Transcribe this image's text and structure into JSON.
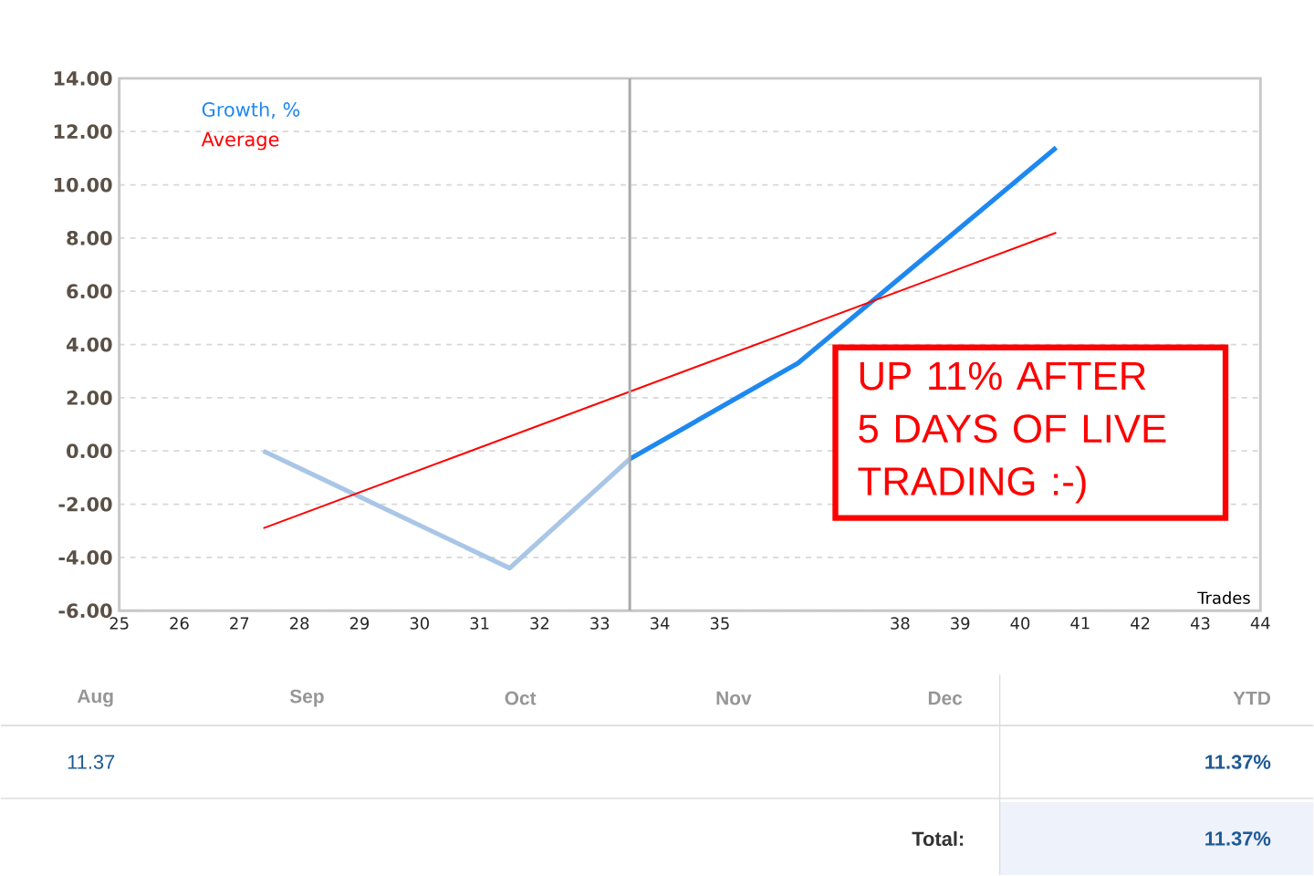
{
  "chart_data": {
    "type": "line",
    "xlabel": "Trades",
    "xlim": [
      25,
      44
    ],
    "xticks": [
      25,
      26,
      27,
      28,
      29,
      30,
      31,
      32,
      33,
      34,
      35,
      38,
      39,
      40,
      41,
      42,
      43,
      44
    ],
    "ylim": [
      -6,
      14
    ],
    "yticks": [
      {
        "value": -6,
        "label": "-6.00"
      },
      {
        "value": -4,
        "label": "-4.00"
      },
      {
        "value": -2,
        "label": "-2.00"
      },
      {
        "value": 0,
        "label": "0.00"
      },
      {
        "value": 2,
        "label": "2.00"
      },
      {
        "value": 4,
        "label": "4.00"
      },
      {
        "value": 6,
        "label": "6.00"
      },
      {
        "value": 8,
        "label": "8.00"
      },
      {
        "value": 10,
        "label": "10.00"
      },
      {
        "value": 12,
        "label": "12.00"
      },
      {
        "value": 14,
        "label": "14.00"
      }
    ],
    "series": [
      {
        "color": "#a9c6e6",
        "x": [
          27.4,
          31.5,
          33.5
        ],
        "values": [
          0,
          -4.4,
          -0.3
        ]
      },
      {
        "name": "Growth, %",
        "color": "#1e88f0",
        "x": [
          33.5,
          36.3,
          40.6
        ],
        "values": [
          -0.3,
          3.3,
          11.4
        ]
      },
      {
        "name": "Average",
        "color": "#ff0000",
        "x": [
          27.4,
          40.6
        ],
        "values": [
          -2.9,
          8.2
        ]
      }
    ],
    "ref_lines": [
      {
        "axis": "x",
        "value": 33.5,
        "color": "#aaaaaa"
      }
    ],
    "grid": "y",
    "legend": "top left",
    "marker": "none",
    "line_style": "solid",
    "annotations": [
      "UP 11% AFTER 5 DAYS OF LIVE TRADING :-)",
      "Aug",
      "Sep",
      "Oct",
      "Nov",
      "Dec",
      "YTD",
      "11.37",
      "11.37%",
      "Total:",
      "11.37%"
    ]
  }
}
